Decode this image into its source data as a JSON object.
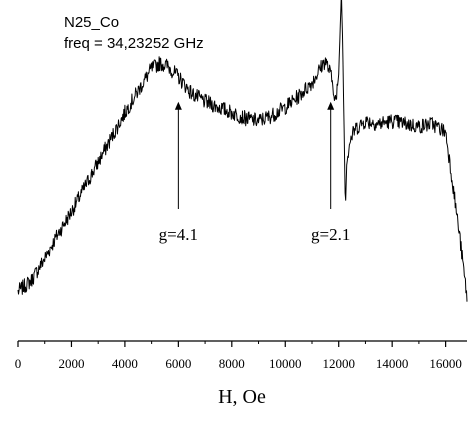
{
  "chart_data": {
    "type": "line",
    "title": "N25_Co",
    "subtitle": "freq = 34,23252 GHz",
    "xlabel": "H, Oe",
    "ylabel": "",
    "xlim": [
      0,
      16800
    ],
    "ylim": [
      -12,
      112
    ],
    "x_ticks": [
      0,
      2000,
      4000,
      6000,
      8000,
      10000,
      12000,
      14000,
      16000
    ],
    "y_axis_shown": false,
    "grid": false,
    "annotations": [
      {
        "text": "g=4.1",
        "x": 6000,
        "arrow_from_y": 36,
        "arrow_to_y": 75
      },
      {
        "text": "g=2.1",
        "x": 11700,
        "arrow_from_y": 36,
        "arrow_to_y": 75
      }
    ],
    "series": [
      {
        "x": [
          0,
          500,
          1000,
          1500,
          2000,
          2500,
          3000,
          3500,
          4000,
          4500,
          5000,
          5300,
          5600,
          6000,
          6500,
          7000,
          7500,
          8000,
          8500,
          9000,
          9500,
          10000,
          10500,
          11000,
          11300,
          11500,
          11700,
          11900,
          12000,
          12100,
          12150,
          12250,
          12300,
          12400,
          12600,
          13000,
          13500,
          14000,
          14500,
          15000,
          15500,
          16000,
          16200,
          16500,
          16800
        ],
        "y": [
          6,
          10,
          18,
          27,
          35,
          44,
          53,
          62,
          71,
          79,
          87,
          89,
          88,
          84,
          78,
          75,
          73,
          71,
          69,
          68,
          70,
          73,
          77,
          82,
          87,
          90,
          85,
          75,
          85,
          115,
          95,
          36,
          52,
          60,
          65,
          68,
          67,
          68,
          67,
          66,
          67,
          64,
          50,
          28,
          4
        ]
      }
    ]
  }
}
